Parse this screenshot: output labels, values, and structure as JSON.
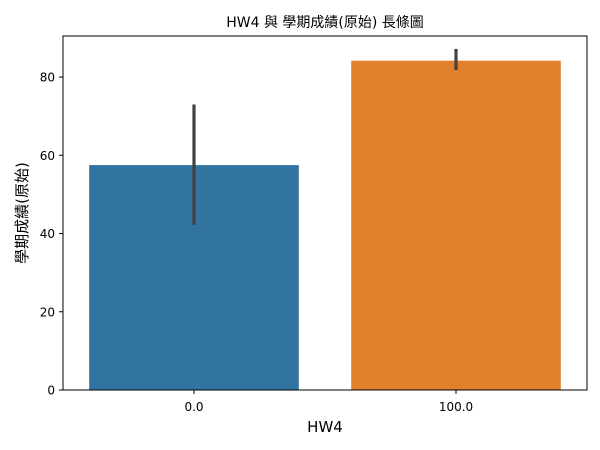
{
  "chart_data": {
    "type": "bar",
    "title": "HW4 與 學期成績(原始) 長條圖",
    "xlabel": "HW4",
    "ylabel": "學期成績(原始)",
    "categories": [
      "0.0",
      "100.0"
    ],
    "values": [
      57.5,
      84.2
    ],
    "error_low": [
      42.2,
      81.8
    ],
    "error_high": [
      73.0,
      87.2
    ],
    "colors": [
      "#3274a1",
      "#e1812c"
    ],
    "ylim": [
      0,
      90.5
    ],
    "yticks": [
      0,
      20,
      40,
      60,
      80
    ],
    "grid": false
  }
}
